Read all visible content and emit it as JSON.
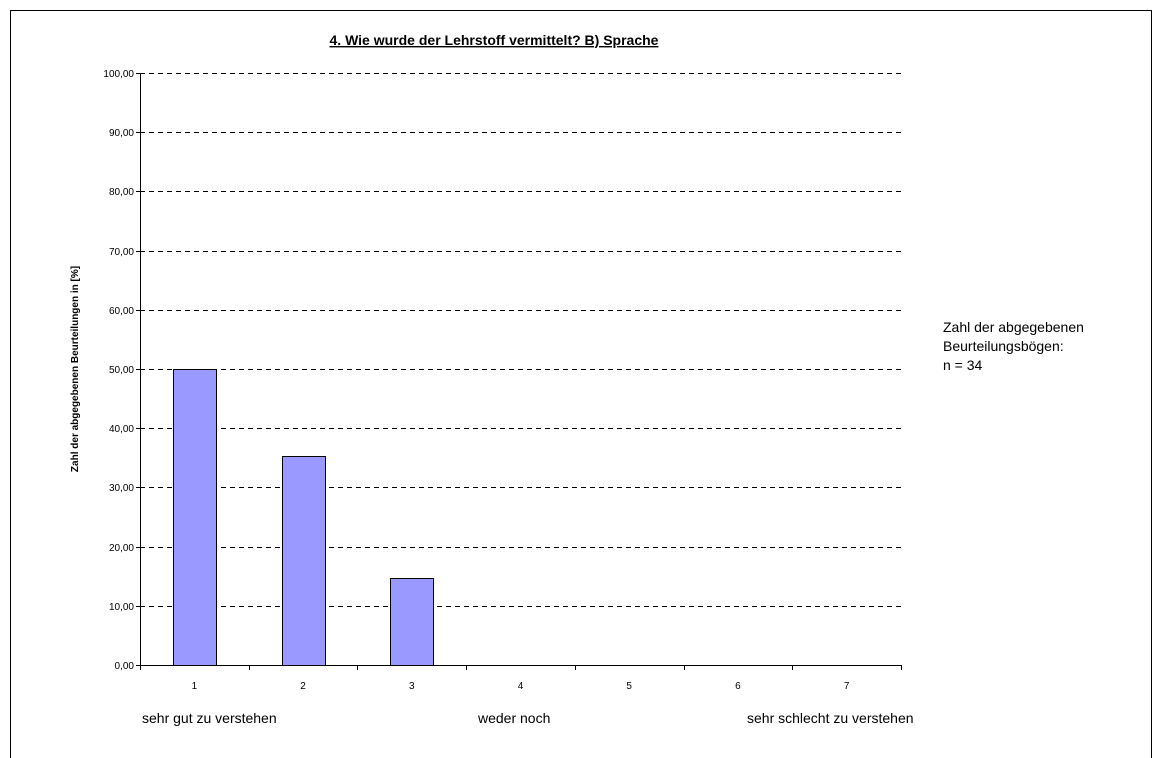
{
  "chart_data": {
    "type": "bar",
    "title": "4. Wie wurde der Lehrstoff vermittelt?   B) Sprache",
    "ylabel": "Zahl der abgegebenen Beurteilungen in [%]",
    "xlabel": "",
    "categories": [
      "1",
      "2",
      "3",
      "4",
      "5",
      "6",
      "7"
    ],
    "values": [
      50.0,
      35.29,
      14.71,
      0,
      0,
      0,
      0
    ],
    "ylim": [
      0,
      100
    ],
    "y_ticks": [
      "0,00",
      "10,00",
      "20,00",
      "30,00",
      "40,00",
      "50,00",
      "60,00",
      "70,00",
      "80,00",
      "90,00",
      "100,00"
    ],
    "grid": "dashed horizontal",
    "bar_color": "#9999ff",
    "scale_labels": {
      "left": "sehr gut zu verstehen",
      "middle": "weder noch",
      "right": "sehr schlecht zu verstehen"
    },
    "note_lines": [
      "Zahl der abgegebenen",
      "Beurteilungsbögen:",
      "n = 34"
    ]
  }
}
